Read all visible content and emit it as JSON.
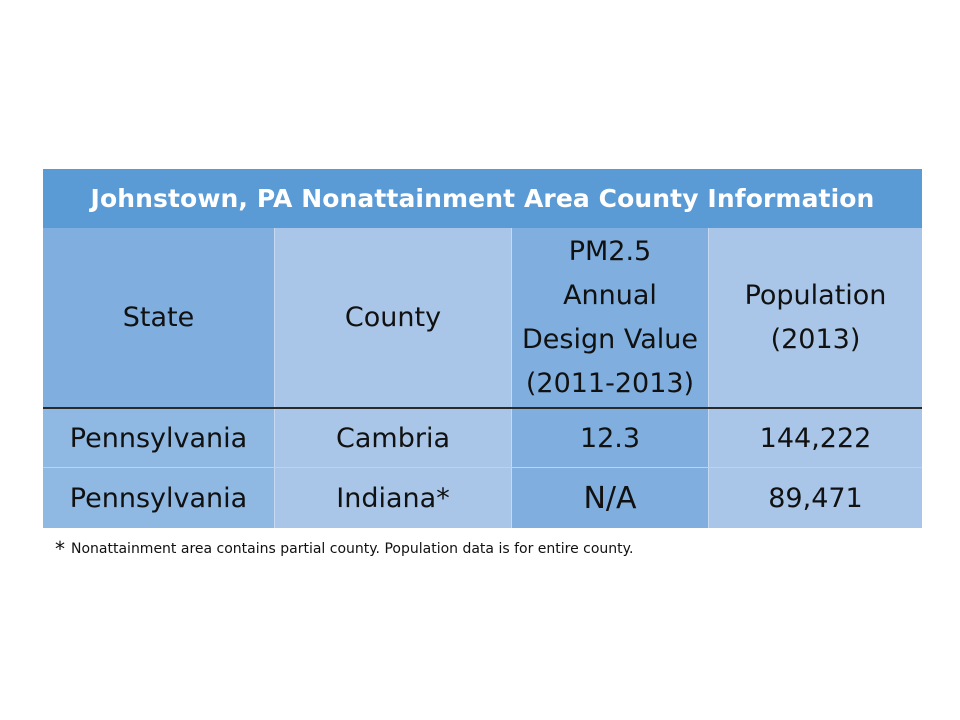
{
  "table": {
    "title": "Johnstown, PA Nonattainment Area County Information",
    "headers": {
      "state": "State",
      "county": "County",
      "pm25_line1": "PM2.5",
      "pm25_line2": "Annual",
      "pm25_line3": "Design Value",
      "pm25_line4": "(2011-2013)",
      "pop_line1": "Population",
      "pop_line2": "(2013)"
    },
    "rows": [
      {
        "state": "Pennsylvania",
        "county": "Cambria",
        "pm25": "12.3",
        "population": "144,222"
      },
      {
        "state": "Pennsylvania",
        "county": "Indiana*",
        "pm25": "N/A",
        "population": "89,471"
      }
    ]
  },
  "footnote": {
    "marker": "*",
    "text": "Nonattainment area contains partial county.  Population data is for entire county."
  }
}
